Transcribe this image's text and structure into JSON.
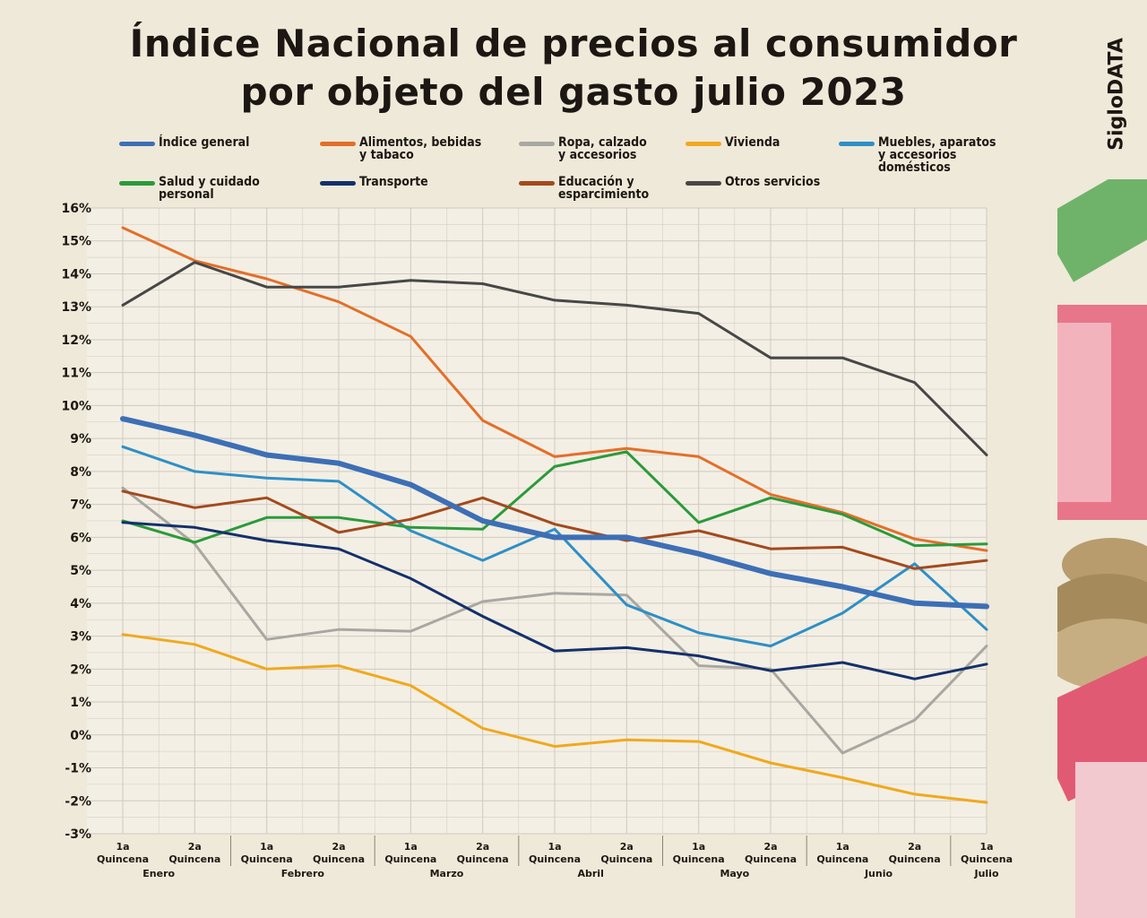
{
  "title_line1": "Índice Nacional de precios al consumidor",
  "title_line2": "por objeto del gasto julio 2023",
  "brand": "SigloDATA",
  "colors": {
    "background": "#efe9d9",
    "grid": "#cfcabf",
    "text": "#1c1712"
  },
  "chart_data": {
    "type": "line",
    "title": "Índice Nacional de precios al consumidor por objeto del gasto julio 2023",
    "xlabel": "",
    "ylabel": "",
    "ylim": [
      -3,
      16
    ],
    "y_ticks": [
      "-3%",
      "-2%",
      "-1%",
      "0%",
      "1%",
      "2%",
      "3%",
      "4%",
      "5%",
      "6%",
      "7%",
      "8%",
      "9%",
      "10%",
      "11%",
      "12%",
      "13%",
      "14%",
      "15%",
      "16%"
    ],
    "grid": true,
    "legend_position": "top",
    "x": [
      {
        "q": "1a",
        "q2": "Quincena"
      },
      {
        "q": "2a",
        "q2": "Quincena"
      },
      {
        "q": "1a",
        "q2": "Quincena"
      },
      {
        "q": "2a",
        "q2": "Quincena"
      },
      {
        "q": "1a",
        "q2": "Quincena"
      },
      {
        "q": "2a",
        "q2": "Quincena"
      },
      {
        "q": "1a",
        "q2": "Quincena"
      },
      {
        "q": "2a",
        "q2": "Quincena"
      },
      {
        "q": "1a",
        "q2": "Quincena"
      },
      {
        "q": "2a",
        "q2": "Quincena"
      },
      {
        "q": "1a",
        "q2": "Quincena"
      },
      {
        "q": "2a",
        "q2": "Quincena"
      },
      {
        "q": "1a",
        "q2": "Quincena"
      }
    ],
    "months": [
      "Enero",
      "Febrero",
      "Marzo",
      "Abril",
      "Mayo",
      "Junio",
      "Julio"
    ],
    "series": [
      {
        "name": "Índice general",
        "color": "#3d6fb5",
        "width": 6,
        "values": [
          9.6,
          9.1,
          8.5,
          8.25,
          7.6,
          6.5,
          6.0,
          6.0,
          5.5,
          4.9,
          4.5,
          4.0,
          3.9
        ]
      },
      {
        "name": "Alimentos, bebidas\ny tabaco",
        "color": "#e36f2a",
        "width": 3,
        "values": [
          15.4,
          14.4,
          13.85,
          13.15,
          12.1,
          9.55,
          8.45,
          8.7,
          8.45,
          7.3,
          6.75,
          5.95,
          5.6
        ]
      },
      {
        "name": "Ropa, calzado\ny accesorios",
        "color": "#a9a7a2",
        "width": 3,
        "values": [
          7.5,
          5.8,
          2.9,
          3.2,
          3.15,
          4.05,
          4.3,
          4.25,
          2.1,
          2.0,
          -0.55,
          0.45,
          2.7
        ]
      },
      {
        "name": "Vivienda",
        "color": "#f0a91d",
        "width": 3,
        "values": [
          3.05,
          2.75,
          2.0,
          2.1,
          1.5,
          0.2,
          -0.35,
          -0.15,
          -0.2,
          -0.85,
          -1.3,
          -1.8,
          -2.05
        ]
      },
      {
        "name": "Muebles, aparatos\ny accesorios\ndomésticos",
        "color": "#2e8fc6",
        "width": 3,
        "values": [
          8.75,
          8.0,
          7.8,
          7.7,
          6.2,
          5.3,
          6.25,
          3.95,
          3.1,
          2.7,
          3.7,
          5.2,
          3.2
        ]
      },
      {
        "name": "Salud y cuidado\npersonal",
        "color": "#2b9a3b",
        "width": 3,
        "values": [
          6.5,
          5.85,
          6.6,
          6.6,
          6.3,
          6.25,
          8.15,
          8.6,
          6.45,
          7.2,
          6.7,
          5.75,
          5.8
        ]
      },
      {
        "name": "Transporte",
        "color": "#14306b",
        "width": 3,
        "values": [
          6.45,
          6.3,
          5.9,
          5.65,
          4.75,
          3.6,
          2.55,
          2.65,
          2.4,
          1.95,
          2.2,
          1.7,
          2.15
        ]
      },
      {
        "name": "Educación y\nesparcimiento",
        "color": "#a34a1e",
        "width": 3,
        "values": [
          7.4,
          6.9,
          7.2,
          6.15,
          6.55,
          7.2,
          6.4,
          5.9,
          6.2,
          5.65,
          5.7,
          5.05,
          5.3
        ]
      },
      {
        "name": "Otros servicios",
        "color": "#474747",
        "width": 3,
        "values": [
          13.05,
          14.35,
          13.6,
          13.6,
          13.8,
          13.7,
          13.2,
          13.05,
          12.8,
          11.45,
          11.45,
          10.7,
          8.5
        ]
      }
    ]
  }
}
